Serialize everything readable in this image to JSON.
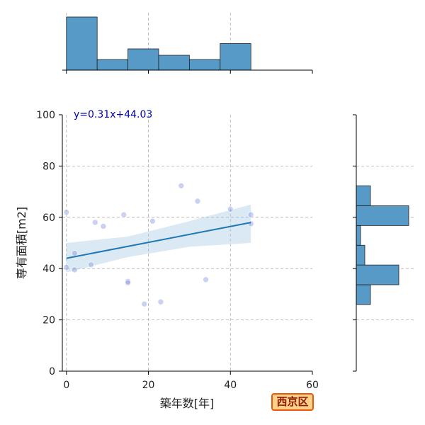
{
  "badge": "西京区",
  "colors": {
    "bar_fill": "#5799c7",
    "bar_edge": "#222222",
    "scatter": "#6a7fd6",
    "regression_line": "#1f77b4",
    "ci_band": "#a6c8e4",
    "equation_text": "#0000aa",
    "badge_fill": "#ffd08a",
    "badge_border": "#e8590c",
    "badge_text": "#8b1a00"
  },
  "chart_data": {
    "type": "scatter",
    "xlabel": "築年数[年]",
    "ylabel": "専有面積[m2]",
    "xlim": [
      -1,
      60
    ],
    "ylim": [
      0,
      100
    ],
    "xticks": [
      0,
      20,
      40,
      60
    ],
    "yticks": [
      0,
      20,
      40,
      60,
      80,
      100
    ],
    "grid": true,
    "points": [
      {
        "x": 0,
        "y": 62
      },
      {
        "x": 0,
        "y": 40.5
      },
      {
        "x": 2,
        "y": 46
      },
      {
        "x": 2,
        "y": 39.5
      },
      {
        "x": 6,
        "y": 41.5
      },
      {
        "x": 7,
        "y": 58
      },
      {
        "x": 9,
        "y": 56.5
      },
      {
        "x": 14,
        "y": 61
      },
      {
        "x": 15,
        "y": 35
      },
      {
        "x": 15,
        "y": 34.5
      },
      {
        "x": 19,
        "y": 26.2
      },
      {
        "x": 21,
        "y": 58.5
      },
      {
        "x": 23,
        "y": 27
      },
      {
        "x": 28,
        "y": 72.3
      },
      {
        "x": 32,
        "y": 66.3
      },
      {
        "x": 34,
        "y": 35.7
      },
      {
        "x": 40,
        "y": 63.2
      },
      {
        "x": 45,
        "y": 61
      },
      {
        "x": 45,
        "y": 57.5
      }
    ],
    "regression": {
      "equation": "y=0.31x+44.03",
      "slope": 0.31,
      "intercept": 44.03,
      "x_range": [
        0,
        45
      ],
      "ci_lower": [
        [
          0,
          38.5
        ],
        [
          15,
          44.5
        ],
        [
          30,
          48.5
        ],
        [
          45,
          50
        ]
      ],
      "ci_upper": [
        [
          0,
          50
        ],
        [
          15,
          52.5
        ],
        [
          30,
          58.5
        ],
        [
          45,
          65
        ]
      ]
    },
    "x_histogram": {
      "bin_edges": [
        0,
        7.5,
        15,
        22.5,
        30,
        37.5,
        45
      ],
      "counts": [
        5,
        1,
        2,
        1.4,
        1,
        2.5
      ]
    },
    "y_histogram": {
      "bin_edges": [
        26,
        33.7,
        41.4,
        49.1,
        56.8,
        64.5,
        72.3
      ],
      "counts": [
        1,
        3,
        0.6,
        0.3,
        3.7,
        1
      ]
    }
  }
}
